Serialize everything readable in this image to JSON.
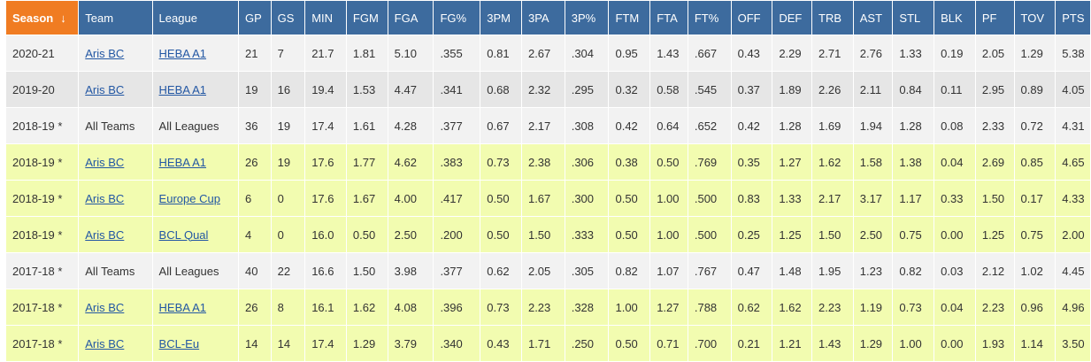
{
  "table": {
    "sort_arrow": "↓",
    "headers": [
      "Season",
      "Team",
      "League",
      "GP",
      "GS",
      "MIN",
      "FGM",
      "FGA",
      "FG%",
      "3PM",
      "3PA",
      "3P%",
      "FTM",
      "FTA",
      "FT%",
      "OFF",
      "DEF",
      "TRB",
      "AST",
      "STL",
      "BLK",
      "PF",
      "TOV",
      "PTS"
    ],
    "rows": [
      {
        "style": "odd",
        "team_link": true,
        "league_link": true,
        "cells": [
          "2020-21",
          "Aris BC",
          "HEBA A1",
          "21",
          "7",
          "21.7",
          "1.81",
          "5.10",
          ".355",
          "0.81",
          "2.67",
          ".304",
          "0.95",
          "1.43",
          ".667",
          "0.43",
          "2.29",
          "2.71",
          "2.76",
          "1.33",
          "0.19",
          "2.05",
          "1.29",
          "5.38"
        ]
      },
      {
        "style": "even",
        "team_link": true,
        "league_link": true,
        "cells": [
          "2019-20",
          "Aris BC",
          "HEBA A1",
          "19",
          "16",
          "19.4",
          "1.53",
          "4.47",
          ".341",
          "0.68",
          "2.32",
          ".295",
          "0.32",
          "0.58",
          ".545",
          "0.37",
          "1.89",
          "2.26",
          "2.11",
          "0.84",
          "0.11",
          "2.95",
          "0.89",
          "4.05"
        ]
      },
      {
        "style": "odd",
        "team_link": false,
        "league_link": false,
        "cells": [
          "2018-19 *",
          "All Teams",
          "All Leagues",
          "36",
          "19",
          "17.4",
          "1.61",
          "4.28",
          ".377",
          "0.67",
          "2.17",
          ".308",
          "0.42",
          "0.64",
          ".652",
          "0.42",
          "1.28",
          "1.69",
          "1.94",
          "1.28",
          "0.08",
          "2.33",
          "0.72",
          "4.31"
        ]
      },
      {
        "style": "hl",
        "team_link": true,
        "league_link": true,
        "cells": [
          "2018-19 *",
          "Aris BC",
          "HEBA A1",
          "26",
          "19",
          "17.6",
          "1.77",
          "4.62",
          ".383",
          "0.73",
          "2.38",
          ".306",
          "0.38",
          "0.50",
          ".769",
          "0.35",
          "1.27",
          "1.62",
          "1.58",
          "1.38",
          "0.04",
          "2.69",
          "0.85",
          "4.65"
        ]
      },
      {
        "style": "hl",
        "team_link": true,
        "league_link": true,
        "cells": [
          "2018-19 *",
          "Aris BC",
          "Europe Cup",
          "6",
          "0",
          "17.6",
          "1.67",
          "4.00",
          ".417",
          "0.50",
          "1.67",
          ".300",
          "0.50",
          "1.00",
          ".500",
          "0.83",
          "1.33",
          "2.17",
          "3.17",
          "1.17",
          "0.33",
          "1.50",
          "0.17",
          "4.33"
        ]
      },
      {
        "style": "hl",
        "team_link": true,
        "league_link": true,
        "cells": [
          "2018-19 *",
          "Aris BC",
          "BCL Qual",
          "4",
          "0",
          "16.0",
          "0.50",
          "2.50",
          ".200",
          "0.50",
          "1.50",
          ".333",
          "0.50",
          "1.00",
          ".500",
          "0.25",
          "1.25",
          "1.50",
          "2.50",
          "0.75",
          "0.00",
          "1.25",
          "0.75",
          "2.00"
        ]
      },
      {
        "style": "odd",
        "team_link": false,
        "league_link": false,
        "cells": [
          "2017-18 *",
          "All Teams",
          "All Leagues",
          "40",
          "22",
          "16.6",
          "1.50",
          "3.98",
          ".377",
          "0.62",
          "2.05",
          ".305",
          "0.82",
          "1.07",
          ".767",
          "0.47",
          "1.48",
          "1.95",
          "1.23",
          "0.82",
          "0.03",
          "2.12",
          "1.02",
          "4.45"
        ]
      },
      {
        "style": "hl",
        "team_link": true,
        "league_link": true,
        "cells": [
          "2017-18 *",
          "Aris BC",
          "HEBA A1",
          "26",
          "8",
          "16.1",
          "1.62",
          "4.08",
          ".396",
          "0.73",
          "2.23",
          ".328",
          "1.00",
          "1.27",
          ".788",
          "0.62",
          "1.62",
          "2.23",
          "1.19",
          "0.73",
          "0.04",
          "2.23",
          "0.96",
          "4.96"
        ]
      },
      {
        "style": "hl",
        "team_link": true,
        "league_link": true,
        "cells": [
          "2017-18 *",
          "Aris BC",
          "BCL-Eu",
          "14",
          "14",
          "17.4",
          "1.29",
          "3.79",
          ".340",
          "0.43",
          "1.71",
          ".250",
          "0.50",
          "0.71",
          ".700",
          "0.21",
          "1.21",
          "1.43",
          "1.29",
          "1.00",
          "0.00",
          "1.93",
          "1.14",
          "3.50"
        ]
      }
    ]
  },
  "colors": {
    "header_bg": "#3d6b9e",
    "sorted_header_bg": "#f07c22",
    "row_odd": "#f2f2f2",
    "row_even": "#e6e6e6",
    "row_highlight": "#f2fcb0",
    "link": "#2357a3"
  }
}
